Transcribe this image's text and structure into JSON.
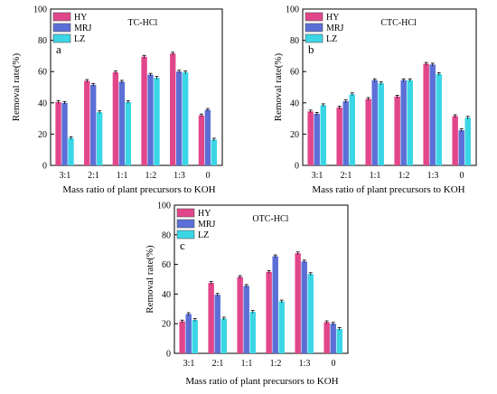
{
  "colors": {
    "HY": "#e2468a",
    "MRJ": "#5b6fd6",
    "LZ": "#3ad6e6",
    "frame": "#000000"
  },
  "chart_data": [
    {
      "type": "bar",
      "panel_label": "a",
      "title": "TC-HCl",
      "xlabel": "Mass ratio of plant precursors to KOH",
      "ylabel": "Removal rate(%)",
      "ylim": [
        0,
        100
      ],
      "yticks": [
        0,
        20,
        40,
        60,
        80,
        100
      ],
      "categories": [
        "3:1",
        "2:1",
        "1:1",
        "1:2",
        "1:3",
        "0"
      ],
      "legend_position": "top-left",
      "series": [
        {
          "name": "HY",
          "values": [
            40.5,
            54,
            59.5,
            69.5,
            71.5,
            32
          ]
        },
        {
          "name": "MRJ",
          "values": [
            40,
            51.5,
            53.5,
            58,
            60,
            35.5
          ]
        },
        {
          "name": "LZ",
          "values": [
            17.5,
            34,
            40.5,
            56,
            59.5,
            16.5
          ]
        }
      ]
    },
    {
      "type": "bar",
      "panel_label": "b",
      "title": "CTC-HCl",
      "xlabel": "Mass ratio of plant precursors to KOH",
      "ylabel": "Removal rate(%)",
      "ylim": [
        0,
        100
      ],
      "yticks": [
        0,
        20,
        40,
        60,
        80,
        100
      ],
      "categories": [
        "3:1",
        "2:1",
        "1:1",
        "1:2",
        "1:3",
        "0"
      ],
      "legend_position": "top-left",
      "series": [
        {
          "name": "HY",
          "values": [
            34.5,
            37,
            42.5,
            44,
            65,
            31.5
          ]
        },
        {
          "name": "MRJ",
          "values": [
            33,
            41,
            54.5,
            54.5,
            64.5,
            22.5
          ]
        },
        {
          "name": "LZ",
          "values": [
            38.5,
            45.5,
            52.5,
            54.5,
            58.5,
            30.5
          ]
        }
      ]
    },
    {
      "type": "bar",
      "panel_label": "c",
      "title": "OTC-HCl",
      "xlabel": "Mass ratio of plant precursors to KOH",
      "ylabel": "Removal rate(%)",
      "ylim": [
        0,
        100
      ],
      "yticks": [
        0,
        20,
        40,
        60,
        80,
        100
      ],
      "categories": [
        "3:1",
        "2:1",
        "1:1",
        "1:2",
        "1:3",
        "0"
      ],
      "legend_position": "top-left",
      "series": [
        {
          "name": "HY",
          "values": [
            21.5,
            47.5,
            51.5,
            55,
            67.5,
            21
          ]
        },
        {
          "name": "MRJ",
          "values": [
            26.5,
            39.5,
            45.5,
            65.5,
            62,
            20
          ]
        },
        {
          "name": "LZ",
          "values": [
            22.5,
            23.5,
            28,
            35,
            53.5,
            16.5
          ]
        }
      ]
    }
  ]
}
